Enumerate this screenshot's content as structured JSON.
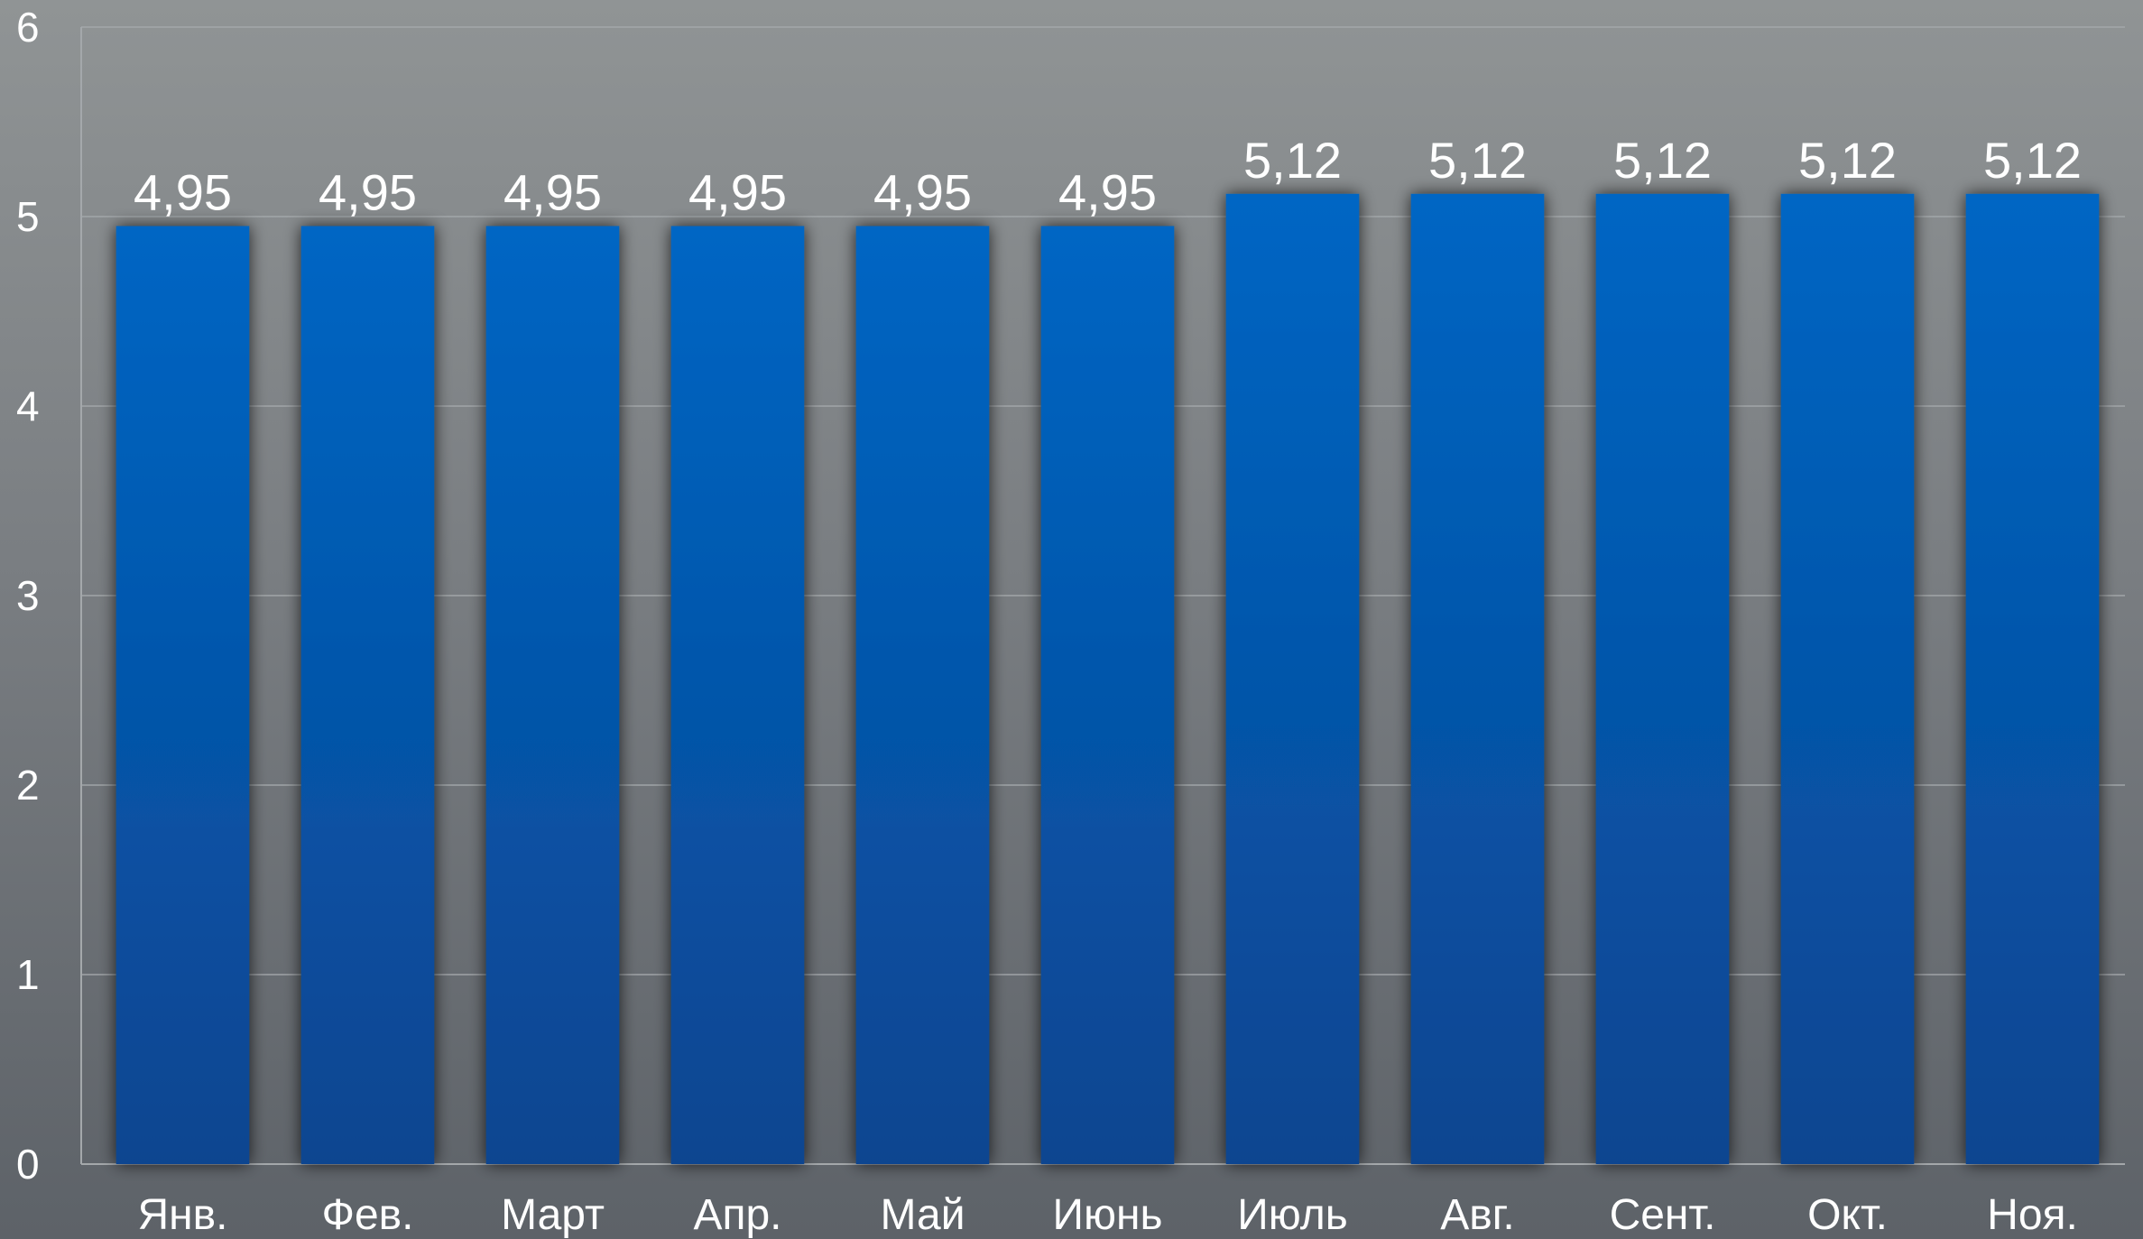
{
  "chart_data": {
    "type": "bar",
    "title": "",
    "xlabel": "",
    "ylabel": "",
    "ylim": [
      0,
      6
    ],
    "yticks": [
      0,
      1,
      2,
      3,
      4,
      5,
      6
    ],
    "ytick_labels": [
      "0",
      "1",
      "2",
      "3",
      "4",
      "5",
      "6"
    ],
    "grid": true,
    "legend": "none",
    "categories": [
      "Янв.",
      "Фев.",
      "Март",
      "Апр.",
      "Май",
      "Июнь",
      "Июль",
      "Авг.",
      "Сент.",
      "Окт.",
      "Ноя."
    ],
    "values": [
      4.95,
      4.95,
      4.95,
      4.95,
      4.95,
      4.95,
      5.12,
      5.12,
      5.12,
      5.12,
      5.12
    ],
    "value_labels": [
      "4,95",
      "4,95",
      "4,95",
      "4,95",
      "4,95",
      "4,95",
      "5,12",
      "5,12",
      "5,12",
      "5,12",
      "5,12"
    ],
    "colors": {
      "bar_top": "#0066c4",
      "bar_bottom": "#0b4590",
      "grid": "#a4a8ab",
      "text": "#ffffff"
    }
  }
}
